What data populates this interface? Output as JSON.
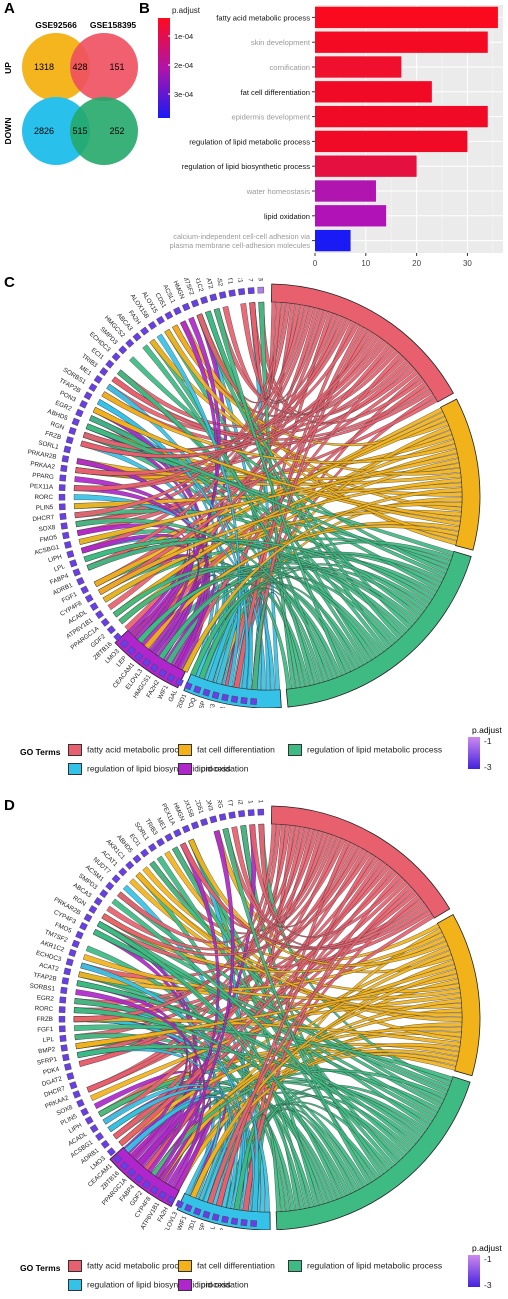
{
  "panel_labels": {
    "a": "A",
    "b": "B",
    "c": "C",
    "d": "D"
  },
  "venn": {
    "datasets": [
      "GSE92566",
      "GSE158395"
    ],
    "rows": [
      "UP",
      "DOWN"
    ],
    "up": {
      "left": "1318",
      "overlap": "428",
      "right": "151"
    },
    "down": {
      "left": "2826",
      "overlap": "515",
      "right": "252"
    },
    "colors": {
      "up_left": "#f5b51f",
      "up_right": "#ef4f5f",
      "down_left": "#29c0ec",
      "down_right": "#23a86a"
    }
  },
  "chart_data": [
    {
      "type": "bar",
      "orientation": "horizontal",
      "categories": [
        "fatty acid metabolic process",
        "skin development",
        "cornification",
        "fat cell differentiation",
        "epidermis development",
        "regulation of lipid metabolic process",
        "regulation of lipid biosynthetic process",
        "water homeostasis",
        "lipid oxidation",
        "calcium-independent cell-cell adhesion via plasma membrane cell-adhesion molecules"
      ],
      "category_lines": [
        [
          "fatty acid metabolic process"
        ],
        [
          "skin development"
        ],
        [
          "cornification"
        ],
        [
          "fat cell differentiation"
        ],
        [
          "epidermis development"
        ],
        [
          "regulation of lipid metabolic process"
        ],
        [
          "regulation of lipid biosynthetic process"
        ],
        [
          "water homeostasis"
        ],
        [
          "lipid oxidation"
        ],
        [
          "calcium-independent cell-cell adhesion via",
          "plasma membrane cell-adhesion molecules"
        ]
      ],
      "highlight": [
        true,
        false,
        false,
        true,
        false,
        true,
        true,
        false,
        true,
        false
      ],
      "values": [
        36,
        34,
        17,
        23,
        34,
        30,
        20,
        12,
        14,
        7
      ],
      "colors": [
        "#fa0a1e",
        "#f50a24",
        "#f0102e",
        "#f00a26",
        "#f00a26",
        "#f00a26",
        "#e51040",
        "#b015b0",
        "#b012b8",
        "#1a1af5"
      ],
      "xlim": [
        0,
        37
      ],
      "xticks": [
        0,
        10,
        20,
        30
      ],
      "xticklabels": [
        "0",
        "10",
        "20",
        "30"
      ],
      "grid": true,
      "legend": {
        "title": "p.adjust",
        "labels": [
          "1e-04",
          "2e-04",
          "3e-04"
        ]
      }
    },
    {
      "type": "chord",
      "terms": [
        "fatty acid metabolic process",
        "fat cell differentiation",
        "regulation of lipid metabolic process",
        "regulation of lipid biosynthetic process",
        "lipid oxidation"
      ],
      "term_colors": [
        "#e8606e",
        "#f2b21a",
        "#3dbb82",
        "#35c2e8",
        "#b025cc"
      ],
      "term_span_deg": [
        60,
        42,
        68,
        27,
        21
      ],
      "genes": [
        "ALOX12B",
        "NUDT7",
        "AKR1C1",
        "SORT1",
        "ACSS2",
        "ACAT2",
        "AKR1C2",
        "TM7SF2",
        "HMGN",
        "ACSL1",
        "CD51",
        "ALOX15",
        "ALOX15B",
        "FA2H",
        "ABCA3",
        "HMGCS2",
        "SMPD3",
        "ECHDC3",
        "ECI1",
        "TRIB3",
        "ME1",
        "SORBS1",
        "TFAP2B",
        "PON3",
        "EGR2",
        "ABHD5",
        "RGN",
        "FRZB",
        "SORL1",
        "PRKAR2B",
        "PRKAA2",
        "PPARG",
        "PEX11A",
        "RORC",
        "PLIN5",
        "DHCR7",
        "SOX8",
        "FMO5",
        "ACSBG1",
        "LIPH",
        "LPL",
        "FABP4",
        "ADRB1",
        "FGF1",
        "CYP4F8",
        "ACADL",
        "ATP6V1B1",
        "PPARGC1A",
        "GDF2",
        "ZBTB16",
        "LMO3",
        "LEP",
        "CEACAM1",
        "ELOVL3",
        "HMGCS1",
        "FA2H2",
        "WIF1",
        "GAL",
        "PM20D1",
        "ADIPOQ",
        "THRSP",
        "ACSS3",
        "GPLD1",
        "MGLL",
        "INSIG1",
        "CYP27A1"
      ],
      "gene_shades": [
        0.2,
        0.5,
        0.5,
        0.4,
        0.6,
        0.5,
        0.5,
        0.5,
        0.5,
        0.4,
        0.5,
        0.5,
        0.5,
        0.5,
        0.6,
        0.5,
        0.5,
        0.5,
        0.5,
        0.5,
        0.5,
        0.5,
        0.5,
        0.5,
        0.5,
        0.5,
        0.5,
        0.5,
        0.5,
        0.5,
        0.5,
        0.5,
        0.5,
        0.5,
        0.5,
        0.5,
        0.5,
        0.5,
        0.5,
        0.5,
        0.5,
        0.5,
        0.5,
        0.5,
        0.5,
        0.5,
        0.5,
        0.5,
        0.5,
        0.5,
        0.5,
        0.5,
        0.5,
        0.5,
        0.5,
        0.5,
        0.5,
        0.5,
        0.5,
        0.5,
        0.5,
        0.5,
        0.5,
        0.5,
        0.5,
        0.5
      ],
      "legend": {
        "title": "GO Terms",
        "p_title": "p.adjust",
        "p_labels": [
          "-1",
          "-3"
        ]
      }
    },
    {
      "type": "chord",
      "terms": [
        "fatty acid metabolic process",
        "fat cell differentiation",
        "regulation of lipid metabolic process",
        "regulation of lipid biosynthetic process",
        "lipid oxidation"
      ],
      "term_colors": [
        "#e8606e",
        "#f2b21a",
        "#3dbb82",
        "#35c2e8",
        "#b025cc"
      ],
      "term_span_deg": [
        58,
        45,
        70,
        26,
        21
      ],
      "genes": [
        "GPLD1",
        "SORT1",
        "ACSS2",
        "NUDT7",
        "PPARG",
        "PON3",
        "CD51",
        "ALOX15B",
        "HMGN",
        "PEX11A",
        "ME1",
        "TRIB3",
        "SORL1",
        "ECI1",
        "ABHD5",
        "AKR1C1",
        "ACAT1",
        "NUDT7",
        "ACSM1",
        "SMPD3",
        "ABCA3",
        "RGN",
        "PRKAR2B",
        "CYP4F3",
        "FMO5",
        "TM7SF2",
        "AKR1C2",
        "ECHDC3",
        "ACAT2",
        "TFAP2B",
        "SORBS1",
        "EGR2",
        "RORC",
        "FRZB",
        "FGF1",
        "LPL",
        "BMP2",
        "SFRP1",
        "PDK4",
        "DGAT2",
        "DHCR7",
        "PRKAA2",
        "SOX8",
        "PLIN5",
        "LIPH",
        "ACADL",
        "ACSBG1",
        "ADRB1",
        "LMO3",
        "CEACAM1",
        "ZBTB16",
        "PPARGC1A",
        "FABP4",
        "GDF2",
        "CYP4F8",
        "ATP6V1B1",
        "FA2H",
        "ELOVL3",
        "WIF1",
        "PM20D1",
        "THRSP",
        "GAL",
        "LEP",
        "ADIPOQ",
        "HMGCS2",
        "ACSS3"
      ],
      "legend": {
        "title": "GO Terms",
        "p_title": "p.adjust",
        "p_labels": [
          "-1",
          "-3"
        ]
      }
    }
  ]
}
